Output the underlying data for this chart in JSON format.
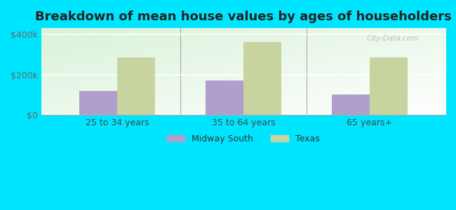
{
  "title": "Breakdown of mean house values by ages of householders",
  "categories": [
    "25 to 34 years",
    "35 to 64 years",
    "65 years+"
  ],
  "midway_south": [
    120000,
    170000,
    100000
  ],
  "texas": [
    285000,
    360000,
    285000
  ],
  "midway_south_color": "#b09fcc",
  "texas_color": "#c8d4a0",
  "background_color": "#00e5ff",
  "y_ticks": [
    0,
    200000,
    400000
  ],
  "y_labels": [
    "$0",
    "$200k",
    "$400k"
  ],
  "ylim": [
    0,
    430000
  ],
  "legend_midway": "Midway South",
  "legend_texas": "Texas",
  "title_fontsize": 13,
  "bar_width": 0.3,
  "watermark": "City-Data.com"
}
